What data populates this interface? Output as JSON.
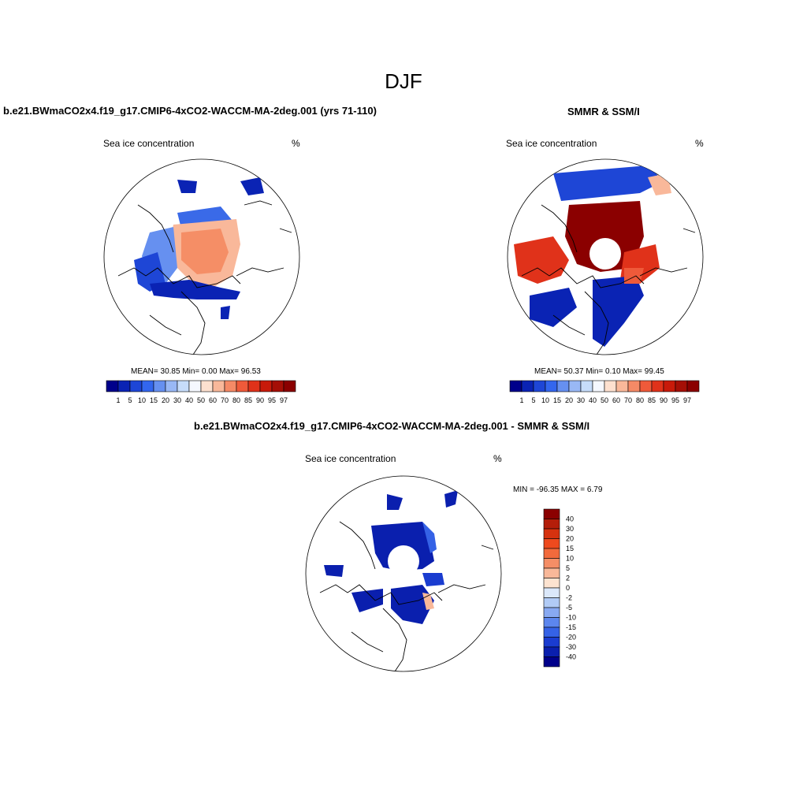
{
  "figure": {
    "season": "DJF"
  },
  "panels": [
    {
      "title": "b.e21.BWmaCO2x4.f19_g17.CMIP6-4xCO2-WACCM-MA-2deg.001 (yrs 71-110)",
      "variable": "Sea ice concentration",
      "units": "%",
      "stats": {
        "mean": "30.85",
        "min": "0.00",
        "max": "96.53"
      },
      "stats_text": "MEAN=  30.85  Min=    0.00  Max=  96.53"
    },
    {
      "title": "SMMR & SSM/I",
      "variable": "Sea ice concentration",
      "units": "%",
      "stats": {
        "mean": "50.37",
        "min": "0.10",
        "max": "99.45"
      },
      "stats_text": "MEAN=  50.37  Min=    0.10  Max=  99.45"
    },
    {
      "title": "b.e21.BWmaCO2x4.f19_g17.CMIP6-4xCO2-WACCM-MA-2deg.001 - SMMR & SSM/I",
      "variable": "Sea ice concentration",
      "units": "%",
      "stats": {
        "min": "-96.35",
        "max": "6.79"
      },
      "stats_text": "MIN = -96.35 MAX =   6.79"
    }
  ],
  "colorbars": {
    "concentration": {
      "labels": [
        "1",
        "5",
        "10",
        "15",
        "20",
        "30",
        "40",
        "50",
        "60",
        "70",
        "80",
        "85",
        "90",
        "95",
        "97"
      ],
      "colors": [
        "#00008b",
        "#0a23b4",
        "#1e46d6",
        "#3366ee",
        "#6690f0",
        "#99b8f5",
        "#c6dcfa",
        "#f5f8ff",
        "#fde0cf",
        "#f9b89a",
        "#f58a66",
        "#ef5a3a",
        "#e0321a",
        "#c81a0a",
        "#a50f06",
        "#8b0000"
      ]
    },
    "difference": {
      "labels": [
        "40",
        "30",
        "20",
        "15",
        "10",
        "5",
        "2",
        "0",
        "-2",
        "-5",
        "-10",
        "-15",
        "-20",
        "-30",
        "-40"
      ],
      "colors": [
        "#8b0000",
        "#b41e0a",
        "#d6320f",
        "#ee4a1e",
        "#f26a3c",
        "#f58e66",
        "#f9b899",
        "#fde3d0",
        "#dbe8fa",
        "#b1cbf6",
        "#88a9f2",
        "#5c86ee",
        "#3562e6",
        "#1a3cd0",
        "#0a1fae",
        "#00008b"
      ]
    }
  }
}
